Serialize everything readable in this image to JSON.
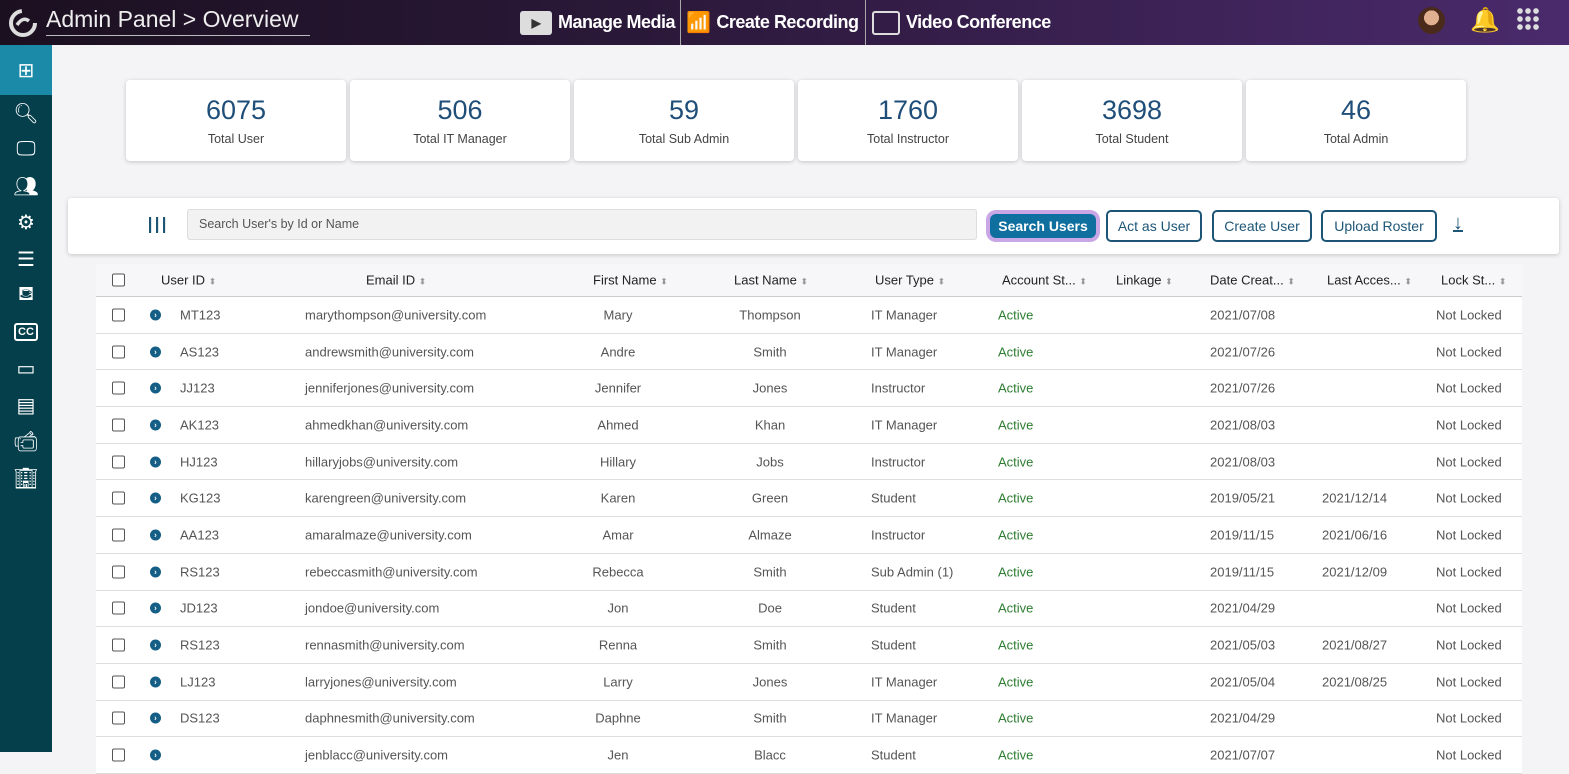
{
  "header": {
    "breadcrumb": "Admin Panel > Overview",
    "nav": [
      {
        "label": "Manage Media",
        "icon": "media-folder-icon"
      },
      {
        "label": "Create Recording",
        "icon": "recording-icon"
      },
      {
        "label": "Video Conference",
        "icon": "video-conference-icon"
      }
    ]
  },
  "sidebar": {
    "items": [
      "dashboard-icon",
      "search-user-icon",
      "monitor-icon",
      "group-icon",
      "gears-icon",
      "layers-icon",
      "paint-bucket-icon",
      "closed-caption-icon",
      "storage-drive-icon",
      "archive-icon",
      "video-camera-icon",
      "building-icon"
    ]
  },
  "stats": [
    {
      "value": "6075",
      "label": "Total User"
    },
    {
      "value": "506",
      "label": "Total IT Manager"
    },
    {
      "value": "59",
      "label": "Total Sub Admin"
    },
    {
      "value": "1760",
      "label": "Total Instructor"
    },
    {
      "value": "3698",
      "label": "Total Student"
    },
    {
      "value": "46",
      "label": "Total Admin"
    }
  ],
  "search": {
    "placeholder": "Search User's by Id or Name",
    "search_label": "Search Users",
    "act_label": "Act as User",
    "create_label": "Create User",
    "upload_label": "Upload Roster"
  },
  "table": {
    "columns": [
      "User ID",
      "Email ID",
      "First Name",
      "Last Name",
      "User Type",
      "Account St...",
      "Linkage",
      "Date Creat...",
      "Last Acces...",
      "Lock St..."
    ],
    "rows": [
      [
        "MT123",
        "marythompson@university.com",
        "Mary",
        "Thompson",
        "IT Manager",
        "Active",
        "",
        "2021/07/08",
        "",
        "Not Locked"
      ],
      [
        "AS123",
        "andrewsmith@university.com",
        "Andre",
        "Smith",
        "IT Manager",
        "Active",
        "",
        "2021/07/26",
        "",
        "Not Locked"
      ],
      [
        "JJ123",
        "jenniferjones@university.com",
        "Jennifer",
        "Jones",
        "Instructor",
        "Active",
        "",
        "2021/07/26",
        "",
        "Not Locked"
      ],
      [
        "AK123",
        "ahmedkhan@university.com",
        "Ahmed",
        "Khan",
        "IT Manager",
        "Active",
        "",
        "2021/08/03",
        "",
        "Not Locked"
      ],
      [
        "HJ123",
        "hillaryjobs@university.com",
        "Hillary",
        "Jobs",
        "Instructor",
        "Active",
        "",
        "2021/08/03",
        "",
        "Not Locked"
      ],
      [
        "KG123",
        "karengreen@university.com",
        "Karen",
        "Green",
        "Student",
        "Active",
        "",
        "2019/05/21",
        "2021/12/14",
        "Not Locked"
      ],
      [
        "AA123",
        "amaralmaze@university.com",
        "Amar",
        "Almaze",
        "Instructor",
        "Active",
        "",
        "2019/11/15",
        "2021/06/16",
        "Not Locked"
      ],
      [
        "RS123",
        "rebeccasmith@university.com",
        "Rebecca",
        "Smith",
        "Sub Admin (1)",
        "Active",
        "",
        "2019/11/15",
        "2021/12/09",
        "Not Locked"
      ],
      [
        "JD123",
        "jondoe@university.com",
        "Jon",
        "Doe",
        "Student",
        "Active",
        "",
        "2021/04/29",
        "",
        "Not Locked"
      ],
      [
        "RS123",
        "rennasmith@university.com",
        "Renna",
        "Smith",
        "Student",
        "Active",
        "",
        "2021/05/03",
        "2021/08/27",
        "Not Locked"
      ],
      [
        "LJ123",
        "larryjones@university.com",
        "Larry",
        "Jones",
        "IT Manager",
        "Active",
        "",
        "2021/05/04",
        "2021/08/25",
        "Not Locked"
      ],
      [
        "DS123",
        "daphnesmith@university.com",
        "Daphne",
        "Smith",
        "IT Manager",
        "Active",
        "",
        "2021/04/29",
        "",
        "Not Locked"
      ],
      [
        "",
        "jenblacc@university.com",
        "Jen",
        "Blacc",
        "Student",
        "Active",
        "",
        "2021/07/07",
        "",
        "Not Locked"
      ]
    ]
  }
}
